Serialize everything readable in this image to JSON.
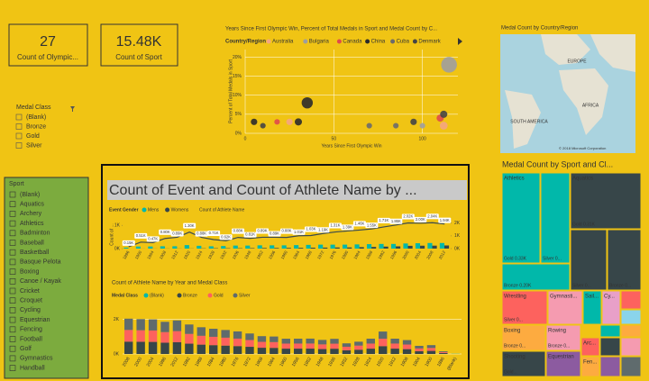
{
  "cards": [
    {
      "value": "27",
      "label": "Count of Olympic..."
    },
    {
      "value": "15.48K",
      "label": "Count of Sport"
    }
  ],
  "medal_slicer": {
    "title": "Medal Class",
    "items": [
      "(Blank)",
      "Bronze",
      "Gold",
      "Silver"
    ]
  },
  "sport_slicer": {
    "title": "Sport",
    "items": [
      "(Blank)",
      "Aquatics",
      "Archery",
      "Athletics",
      "Badminton",
      "Baseball",
      "Basketball",
      "Basque Pelota",
      "Boxing",
      "Canoe / Kayak",
      "Cricket",
      "Croquet",
      "Cycling",
      "Equestrian",
      "Fencing",
      "Football",
      "Golf",
      "Gymnastics",
      "Handball"
    ]
  },
  "map": {
    "title": "Medal Count by Country/Region",
    "labels": [
      "EUROPE",
      "AFRICA",
      "SOUTH AMERICA"
    ],
    "copyright": "© 2018 Microsoft Corporation"
  },
  "treemap": {
    "title": "Medal Count by Sport and Cl...",
    "tiles": [
      {
        "label": "Athletics",
        "sub": "Gold 0.33K",
        "color": "#01b8aa"
      },
      {
        "sub": "Silver 0...",
        "color": "#01b8aa"
      },
      {
        "sub": "Bronze 0.20K",
        "color": "#01b8aa"
      },
      {
        "label": "Aquatics",
        "sub": "Gold 0.31K",
        "color": "#374649"
      },
      {
        "sub": "Silver 0...",
        "color": "#374649"
      },
      {
        "sub": "Bronze 0...",
        "color": "#374649"
      },
      {
        "label": "Wrestling",
        "sub": "Silver 0...",
        "color": "#fd625e"
      },
      {
        "label": "Gymnasti...",
        "color": "#f59bb0"
      },
      {
        "label": "Sail...",
        "color": "#01b8aa"
      },
      {
        "label": "Cy...",
        "color": "#e8a0c8"
      },
      {
        "label": "Boxing",
        "sub": "Bronze 0...",
        "color": "#fdab40"
      },
      {
        "label": "Rowing",
        "sub": "Bronze 0...",
        "color": "#f59bb0"
      },
      {
        "label": "Shooting",
        "sub": "Gold...",
        "color": "#374649"
      },
      {
        "label": "Equestrian",
        "color": "#8c5ba0"
      },
      {
        "label": "Arc...",
        "color": "#fd625e"
      },
      {
        "label": "Fen...",
        "color": "#fdab40"
      }
    ]
  },
  "chart_data": [
    {
      "type": "scatter",
      "title": "Years Since First Olympic Win, Percent of Total Medals in Sport and Medal Count by C...",
      "legend_title": "Country/Region",
      "x_label": "Years Since First Olympic Win",
      "y_label": "Percent of Total Medals in Sport",
      "xlim": [
        0,
        120
      ],
      "xticks": [
        0,
        50,
        100
      ],
      "ylim": [
        0,
        22
      ],
      "yticks": [
        {
          "value": 0,
          "label": "0%"
        },
        {
          "value": 5,
          "label": "5%"
        },
        {
          "value": 10,
          "label": "10%"
        },
        {
          "value": 15,
          "label": "15%"
        },
        {
          "value": 20,
          "label": "20%"
        }
      ],
      "grid": true,
      "series": [
        {
          "name": "Australia",
          "color": "#f4a582",
          "x": [
            25,
            112
          ],
          "values": [
            3,
            2
          ],
          "sizes": [
            20,
            30
          ]
        },
        {
          "name": "Bulgaria",
          "color": "#9e9e9e",
          "x": [
            100,
            115
          ],
          "values": [
            2,
            18
          ],
          "sizes": [
            15,
            120
          ]
        },
        {
          "name": "Canada",
          "color": "#e04b4b",
          "x": [
            18,
            110
          ],
          "values": [
            3,
            4
          ],
          "sizes": [
            15,
            25
          ]
        },
        {
          "name": "China",
          "color": "#2b2b2b",
          "x": [
            5,
            30,
            35
          ],
          "values": [
            3,
            3,
            8
          ],
          "sizes": [
            20,
            25,
            60
          ]
        },
        {
          "name": "Cuba",
          "color": "#6b6b6b",
          "x": [
            70,
            85
          ],
          "values": [
            2,
            2
          ],
          "sizes": [
            15,
            15
          ]
        },
        {
          "name": "Denmark",
          "color": "#454545",
          "x": [
            10,
            95,
            112
          ],
          "values": [
            2,
            3,
            5
          ],
          "sizes": [
            15,
            20,
            25
          ]
        }
      ]
    },
    {
      "type": "combo",
      "title": "Count of Event and Count of Athlete Name by ...",
      "legend_title": "Event Gender",
      "y_label": "Count of ...",
      "categories": [
        "1896",
        "1900",
        "1904",
        "1908",
        "1912",
        "1920",
        "1924",
        "1928",
        "1932",
        "1936",
        "1948",
        "1952",
        "1956",
        "1960",
        "1964",
        "1968",
        "1972",
        "1976",
        "1980",
        "1984",
        "1988",
        "1992",
        "1996",
        "2000",
        "2004",
        "2008",
        "2012"
      ],
      "ylim": [
        0,
        1200
      ],
      "yticks": [
        {
          "value": 0,
          "label": "0K"
        },
        {
          "value": 1000,
          "label": "1K"
        }
      ],
      "y2lim": [
        0,
        2200
      ],
      "y2ticks": [
        {
          "value": 0,
          "label": "0K"
        },
        {
          "value": 1000,
          "label": "1K"
        },
        {
          "value": 2000,
          "label": "2K"
        }
      ],
      "series": [
        {
          "name": "Mens",
          "color": "#01b8aa",
          "values": [
            43,
            90,
            91,
            100,
            100,
            150,
            120,
            100,
            110,
            130,
            130,
            140,
            140,
            140,
            150,
            160,
            170,
            170,
            170,
            180,
            190,
            200,
            200,
            220,
            230,
            240,
            240
          ]
        },
        {
          "name": "Womens",
          "color": "#374649",
          "values": [
            0,
            2,
            3,
            4,
            4,
            5,
            10,
            15,
            15,
            15,
            20,
            25,
            26,
            30,
            33,
            39,
            43,
            49,
            50,
            62,
            72,
            86,
            97,
            120,
            125,
            127,
            135
          ]
        },
        {
          "name": "Count of Athlete Name",
          "color": "#3b4a4c",
          "axis": "y2",
          "values": [
            150,
            510,
            470,
            800,
            890,
            1300,
            880,
            710,
            620,
            880,
            810,
            890,
            890,
            880,
            1010,
            1030,
            1190,
            1310,
            1390,
            1460,
            1550,
            1710,
            1860,
            2020,
            2000,
            2040,
            1940
          ],
          "value_labels": [
            "0.15K",
            "0.51K",
            "0.47K",
            "0.80K",
            "0.89K",
            "1.30K",
            "0.88K",
            "0.71K",
            "0.62K",
            "0.88K",
            "0.81K",
            "0.89K",
            "0.89K",
            "0.88K",
            "1.01K",
            "1.03K",
            "1.19K",
            "1.31K",
            "1.39K",
            "1.46K",
            "1.55K",
            "1.71K",
            "1.86K",
            "2.02K",
            "2.00K",
            "2.04K",
            "1.94K"
          ]
        }
      ]
    },
    {
      "type": "stacked_bar",
      "title": "Count of Athlete Name by Year and Medal Class",
      "legend_title": "Medal Class",
      "categories": [
        "2008",
        "2000",
        "2004",
        "1996",
        "2012",
        "1992",
        "1988",
        "1984",
        "1980",
        "1976",
        "1972",
        "1968",
        "1964",
        "1960",
        "1956",
        "1952",
        "1948",
        "1936",
        "1932",
        "1928",
        "1924",
        "1920",
        "1912",
        "1908",
        "1904",
        "1900",
        "1896",
        "(Blank)"
      ],
      "ylim": [
        0,
        2500
      ],
      "yticks": [
        {
          "value": 0,
          "label": "0K"
        },
        {
          "value": 2000,
          "label": "2K"
        }
      ],
      "grid": true,
      "series": [
        {
          "name": "(Blank)",
          "color": "#01b8aa",
          "values": [
            0,
            0,
            0,
            0,
            0,
            0,
            0,
            0,
            0,
            0,
            0,
            0,
            0,
            0,
            0,
            0,
            0,
            0,
            0,
            0,
            0,
            0,
            0,
            0,
            0,
            0,
            0,
            10
          ]
        },
        {
          "name": "Bronze",
          "color": "#374649",
          "values": [
            715,
            705,
            699,
            651,
            679,
            597,
            541,
            511,
            485,
            457,
            415,
            361,
            354,
            309,
            310,
            311,
            285,
            306,
            215,
            249,
            309,
            454,
            310,
            281,
            165,
            179,
            53,
            0
          ]
        },
        {
          "name": "Gold",
          "color": "#fd625e",
          "values": [
            674,
            665,
            659,
            613,
            640,
            563,
            510,
            481,
            458,
            431,
            391,
            340,
            333,
            291,
            292,
            293,
            269,
            289,
            203,
            234,
            292,
            428,
            292,
            265,
            155,
            169,
            50,
            0
          ]
        },
        {
          "name": "Silver",
          "color": "#5f6b6d",
          "values": [
            653,
            645,
            640,
            595,
            621,
            545,
            495,
            467,
            444,
            417,
            379,
            330,
            323,
            282,
            283,
            285,
            260,
            280,
            197,
            227,
            283,
            416,
            283,
            258,
            150,
            164,
            48,
            0
          ]
        }
      ]
    }
  ]
}
